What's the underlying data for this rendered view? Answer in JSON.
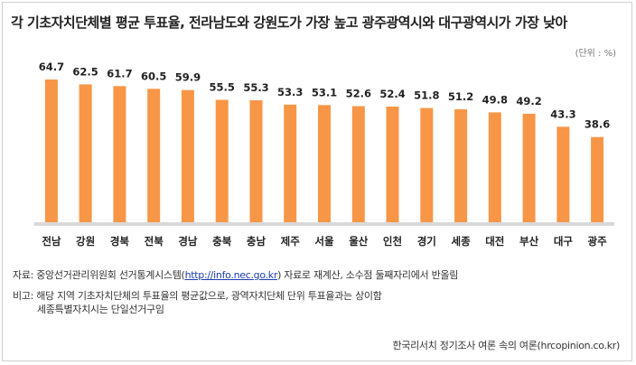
{
  "title": "각 기초자치단체별 평균 투표율, 전라남도와 강원도가 가장 높고 광주광역시와 대구광역시가 가장 낮아",
  "unit": "(단위 : %)",
  "chart_data": {
    "type": "bar",
    "title": "각 기초자치단체별 평균 투표율, 전라남도와 강원도가 가장 높고 광주광역시와 대구광역시가 가장 낮아",
    "categories": [
      "전남",
      "강원",
      "경북",
      "전북",
      "경남",
      "충북",
      "충남",
      "제주",
      "서울",
      "울산",
      "인천",
      "경기",
      "세종",
      "대전",
      "부산",
      "대구",
      "광주"
    ],
    "values": [
      64.7,
      62.5,
      61.7,
      60.5,
      59.9,
      55.5,
      55.3,
      53.3,
      53.1,
      52.6,
      52.4,
      51.8,
      51.2,
      49.8,
      49.2,
      43.3,
      38.6
    ],
    "value_labels": [
      "64.7",
      "62.5",
      "61.7",
      "60.5",
      "59.9",
      "55.5",
      "55.3",
      "53.3",
      "53.1",
      "52.6",
      "52.4",
      "51.8",
      "51.2",
      "49.8",
      "49.2",
      "43.3",
      "38.6"
    ],
    "ylim": [
      0,
      70
    ],
    "bar_color": "#f79646",
    "baseline_color": "#d9d9d9",
    "grid": false,
    "legend": "none"
  },
  "source": {
    "prefix": "자료: 중앙선거관리위원회 선거통계시스템(",
    "link": "http://info.nec.go.kr",
    "suffix": ") 자료로 재계산, 소수점 둘째자리에서 반올림"
  },
  "note": {
    "line1": "비고: 해당 지역 기초자치단체의 투표율의 평균값으로, 광역자치단체 단위 투표율과는 상이함",
    "line2": "세종특별자치시는 단일선거구임"
  },
  "credit": "한국리서치 정기조사 여론 속의 여론(hrcopinion.co.kr)"
}
